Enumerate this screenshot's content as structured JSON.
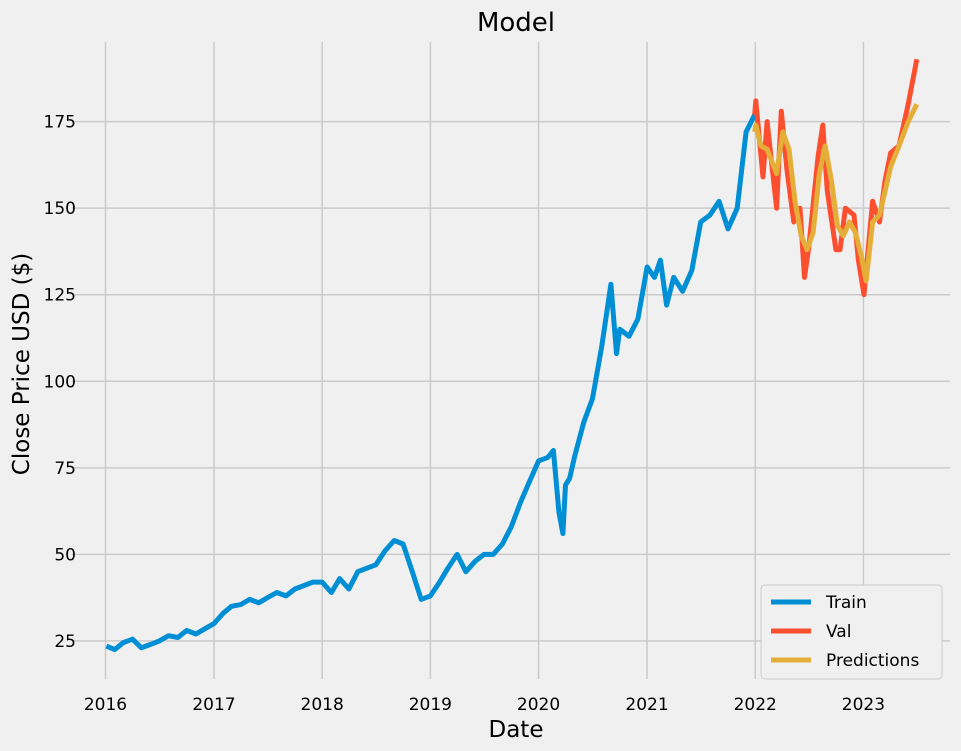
{
  "chart_data": {
    "type": "line",
    "title": "Model",
    "xlabel": "Date",
    "ylabel": "Close Price USD ($)",
    "xlim": [
      "2015-09-10",
      "2023-10-20"
    ],
    "ylim": [
      14,
      198
    ],
    "x_ticks": [
      "2016",
      "2017",
      "2018",
      "2019",
      "2020",
      "2021",
      "2022",
      "2023"
    ],
    "y_ticks": [
      25,
      50,
      75,
      100,
      125,
      150,
      175
    ],
    "grid": true,
    "legend_position": "bottom-right",
    "colors": {
      "Train": "#008fd5",
      "Val": "#fc4f30",
      "Predictions": "#e5ae38",
      "background": "#f0f0f0",
      "grid": "#cbcbcb"
    },
    "series": [
      {
        "name": "Train",
        "x": [
          "2016-01-04",
          "2016-02-01",
          "2016-03-01",
          "2016-04-01",
          "2016-05-01",
          "2016-06-01",
          "2016-07-01",
          "2016-08-01",
          "2016-09-01",
          "2016-10-01",
          "2016-11-01",
          "2016-12-01",
          "2017-01-01",
          "2017-02-01",
          "2017-03-01",
          "2017-04-01",
          "2017-05-01",
          "2017-06-01",
          "2017-07-01",
          "2017-08-01",
          "2017-09-01",
          "2017-10-01",
          "2017-11-01",
          "2017-12-01",
          "2018-01-01",
          "2018-02-01",
          "2018-03-01",
          "2018-04-01",
          "2018-05-01",
          "2018-06-01",
          "2018-07-01",
          "2018-08-01",
          "2018-09-01",
          "2018-10-01",
          "2018-11-01",
          "2018-12-01",
          "2019-01-01",
          "2019-02-01",
          "2019-03-01",
          "2019-04-01",
          "2019-05-01",
          "2019-06-01",
          "2019-07-01",
          "2019-08-01",
          "2019-09-01",
          "2019-10-01",
          "2019-11-01",
          "2019-12-01",
          "2020-01-01",
          "2020-02-01",
          "2020-02-20",
          "2020-03-10",
          "2020-03-23",
          "2020-04-01",
          "2020-04-15",
          "2020-05-01",
          "2020-06-01",
          "2020-07-01",
          "2020-08-01",
          "2020-09-01",
          "2020-09-20",
          "2020-10-01",
          "2020-11-01",
          "2020-12-01",
          "2021-01-01",
          "2021-01-26",
          "2021-02-15",
          "2021-03-08",
          "2021-04-01",
          "2021-05-01",
          "2021-06-01",
          "2021-07-01",
          "2021-08-01",
          "2021-09-01",
          "2021-10-01",
          "2021-11-01",
          "2021-12-01",
          "2021-12-30"
        ],
        "y": [
          23.5,
          22.5,
          24.5,
          25.5,
          23,
          24,
          25,
          26.5,
          26,
          28,
          27,
          28.5,
          30,
          33,
          35,
          35.5,
          37,
          36,
          37.5,
          39,
          38,
          40,
          41,
          42,
          42,
          39,
          43,
          40,
          45,
          46,
          47,
          51,
          54,
          53,
          45,
          37,
          38,
          42,
          46,
          50,
          45,
          48,
          50,
          50,
          53,
          58,
          65,
          71,
          77,
          78,
          80,
          62,
          56,
          70,
          72,
          78,
          88,
          95,
          110,
          128,
          108,
          115,
          113,
          118,
          133,
          130,
          135,
          122,
          130,
          126,
          132,
          146,
          148,
          152,
          144,
          150,
          172,
          177
        ]
      },
      {
        "name": "Val",
        "x": [
          "2021-12-30",
          "2022-01-03",
          "2022-01-27",
          "2022-02-10",
          "2022-03-14",
          "2022-03-30",
          "2022-04-18",
          "2022-05-11",
          "2022-06-01",
          "2022-06-16",
          "2022-07-01",
          "2022-08-01",
          "2022-08-17",
          "2022-09-01",
          "2022-09-30",
          "2022-10-14",
          "2022-11-01",
          "2022-11-30",
          "2022-12-15",
          "2023-01-03",
          "2023-02-01",
          "2023-02-24",
          "2023-03-15",
          "2023-04-03",
          "2023-05-01",
          "2023-06-01",
          "2023-06-30"
        ],
        "y": [
          177,
          181,
          159,
          175,
          150,
          178,
          161,
          146,
          150,
          130,
          139,
          165,
          174,
          155,
          138,
          138,
          150,
          148,
          135,
          125,
          152,
          146,
          158,
          166,
          168,
          180,
          193
        ]
      },
      {
        "name": "Predictions",
        "x": [
          "2021-12-30",
          "2022-01-03",
          "2022-01-20",
          "2022-02-10",
          "2022-03-14",
          "2022-04-04",
          "2022-04-25",
          "2022-05-15",
          "2022-06-05",
          "2022-06-25",
          "2022-07-15",
          "2022-08-05",
          "2022-08-25",
          "2022-09-15",
          "2022-10-05",
          "2022-10-25",
          "2022-11-15",
          "2022-12-05",
          "2022-12-25",
          "2023-01-10",
          "2023-02-01",
          "2023-02-24",
          "2023-03-15",
          "2023-04-03",
          "2023-05-01",
          "2023-06-01",
          "2023-06-30"
        ],
        "y": [
          172,
          174,
          168,
          167,
          160,
          172,
          167,
          152,
          142,
          138,
          143,
          160,
          168,
          158,
          145,
          142,
          146,
          143,
          136,
          129,
          146,
          148,
          155,
          162,
          168,
          175,
          180
        ]
      }
    ]
  }
}
